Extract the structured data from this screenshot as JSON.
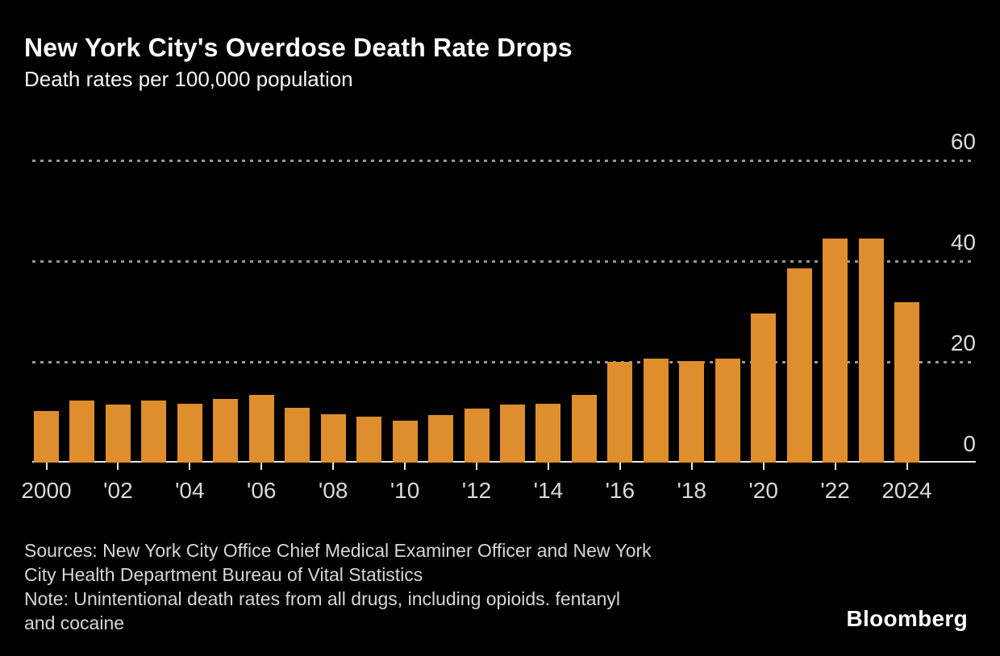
{
  "header": {
    "title": "New York City's Overdose Death Rate Drops",
    "subtitle": "Death rates per 100,000 population"
  },
  "footer": {
    "sources": "Sources: New York City Office Chief Medical Examiner Officer and New York\nCity Health Department Bureau of Vital Statistics",
    "note": "Note: Unintentional death rates from all drugs, including opioids. fentanyl\nand cocaine",
    "brand": "Bloomberg"
  },
  "colors": {
    "background": "#000000",
    "bar": "#DE8E2C",
    "grid": "#979797",
    "axis_line": "#E9E9E9",
    "tick": "#E9E9E9",
    "text_primary": "#FFFFFF",
    "text_secondary": "#D9D9D9"
  },
  "chart_data": {
    "type": "bar",
    "title": "New York City's Overdose Death Rate Drops",
    "subtitle": "Death rates per 100,000 population",
    "xlabel": "",
    "ylabel": "Death rate per 100,000 population",
    "x": [
      2000,
      2001,
      2002,
      2003,
      2004,
      2005,
      2006,
      2007,
      2008,
      2009,
      2010,
      2011,
      2012,
      2013,
      2014,
      2015,
      2016,
      2017,
      2018,
      2019,
      2020,
      2021,
      2022,
      2023,
      2024
    ],
    "values": [
      10.2,
      12.3,
      11.6,
      12.4,
      11.7,
      12.6,
      13.4,
      10.9,
      9.6,
      9.1,
      8.3,
      9.4,
      10.8,
      11.5,
      11.7,
      13.5,
      20.0,
      20.6,
      20.1,
      20.7,
      29.6,
      38.6,
      44.5,
      44.5,
      31.8
    ],
    "x_tick_labels": [
      "2000",
      "'02",
      "'04",
      "'06",
      "'08",
      "'10",
      "'12",
      "'14",
      "'16",
      "'18",
      "'20",
      "'22",
      "2024"
    ],
    "x_tick_every": 2,
    "y_ticks": [
      0,
      20,
      40,
      60
    ],
    "y_tick_labels": [
      "0",
      "20",
      "40",
      "60"
    ],
    "ylim": [
      0,
      64
    ],
    "grid": "horizontal dotted at 20/40/60, solid baseline at 0",
    "legend": "none",
    "y_axis_side": "right"
  }
}
